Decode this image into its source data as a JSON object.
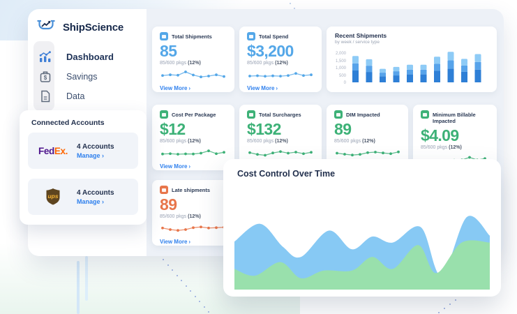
{
  "ui": {
    "chevron": "›"
  },
  "sidebar": {
    "brand": "ShipScience",
    "items": [
      {
        "label": "Dashboard",
        "active": true
      },
      {
        "label": "Savings",
        "active": false
      },
      {
        "label": "Data",
        "active": false
      }
    ]
  },
  "connected_accounts": {
    "title": "Connected Accounts",
    "accounts": [
      {
        "name": "FedEx",
        "logo": {
          "fed": "Fed",
          "ex": "Ex."
        },
        "count": "4 Accounts",
        "manage": "Manage"
      },
      {
        "name": "UPS",
        "logo": {
          "text": "ups"
        },
        "count": "4 Accounts",
        "manage": "Manage"
      }
    ]
  },
  "cards": {
    "total_shipments": {
      "title": "Total Shipments",
      "value": "85",
      "sub": "85/600 pkgs",
      "pct": "(12%)",
      "view_more": "View More",
      "accent": "#54a7e8",
      "spark": [
        55,
        48,
        52,
        20,
        50,
        68,
        60,
        48,
        64
      ]
    },
    "total_spend": {
      "title": "Total Spend",
      "value": "$3,200",
      "sub": "85/600 pkgs",
      "pct": "(12%)",
      "view_more": "View More",
      "accent": "#54a7e8",
      "spark": [
        60,
        57,
        62,
        58,
        61,
        55,
        35,
        55,
        48
      ]
    },
    "cost_per_package": {
      "title": "Cost Per Package",
      "value": "$12",
      "sub": "85/600 pkgs",
      "pct": "(12%)",
      "view_more": "View More",
      "accent": "#3db177",
      "spark": [
        58,
        55,
        60,
        57,
        58,
        50,
        28,
        55,
        42
      ]
    },
    "total_surcharges": {
      "title": "Total Surcharges",
      "value": "$132",
      "sub": "85/600 pkgs",
      "pct": "(12%)",
      "view_more": "View More",
      "accent": "#3db177",
      "spark": [
        45,
        62,
        70,
        48,
        35,
        50,
        40,
        55,
        42
      ]
    },
    "dim_impacted": {
      "title": "DIM Impacted",
      "value": "89",
      "sub": "85/600 pkgs",
      "pct": "(12%)",
      "view_more": "View More",
      "accent": "#3db177",
      "spark": [
        50,
        60,
        68,
        62,
        45,
        40,
        48,
        55,
        38
      ]
    },
    "min_billable": {
      "title": "Minimum Billable Impacted",
      "value": "$4.09",
      "sub": "85/600 pkgs",
      "pct": "(12%)",
      "view_more": "View More",
      "accent": "#3db177",
      "spark": [
        62,
        60,
        63,
        60,
        58,
        55,
        30,
        55,
        42
      ]
    },
    "late_shipments": {
      "title": "Late shipments",
      "value": "89",
      "sub": "85/600 pkgs",
      "pct": "(12%)",
      "view_more": "View More",
      "accent": "#e8764b",
      "spark": [
        45,
        60,
        68,
        60,
        42,
        35,
        45,
        42,
        38
      ]
    }
  },
  "chart_data": [
    {
      "id": "recent_shipments",
      "type": "bar",
      "title": "Recent Shipments",
      "subtitle": "by week / service type",
      "stacked": true,
      "y_ticks": [
        "2,000",
        "1,500",
        "1,000",
        "500",
        "0"
      ],
      "ylim": [
        0,
        2000
      ],
      "values": [
        1640,
        1440,
        840,
        960,
        1100,
        1100,
        1600,
        1900,
        1460,
        1760
      ],
      "segment_fractions": [
        0.45,
        0.27,
        0.28
      ],
      "colors": [
        "#2e7fd6",
        "#57a3ea",
        "#8ecbf6"
      ],
      "grid": false,
      "legend": false
    },
    {
      "id": "cost_control",
      "type": "area",
      "title": "Cost Control Over Time",
      "units": "relative (0-100 of plot height, y measured from top)",
      "grid": false,
      "legend": false,
      "series": [
        {
          "name": "cost",
          "color": "#87c9f4",
          "points": [
            [
              0,
              47
            ],
            [
              10,
              26
            ],
            [
              19,
              53
            ],
            [
              26,
              65
            ],
            [
              37,
              34
            ],
            [
              46,
              56
            ],
            [
              54,
              41
            ],
            [
              62,
              48
            ],
            [
              73,
              30
            ],
            [
              81,
              87
            ],
            [
              91,
              18
            ],
            [
              100,
              40
            ]
          ]
        },
        {
          "name": "savings",
          "color": "#99e0ac",
          "points": [
            [
              0,
              79
            ],
            [
              8,
              87
            ],
            [
              18,
              71
            ],
            [
              26,
              90
            ],
            [
              35,
              81
            ],
            [
              46,
              81
            ],
            [
              54,
              65
            ],
            [
              62,
              79
            ],
            [
              72,
              51
            ],
            [
              79,
              84
            ],
            [
              89,
              48
            ],
            [
              100,
              48
            ]
          ]
        }
      ]
    }
  ]
}
